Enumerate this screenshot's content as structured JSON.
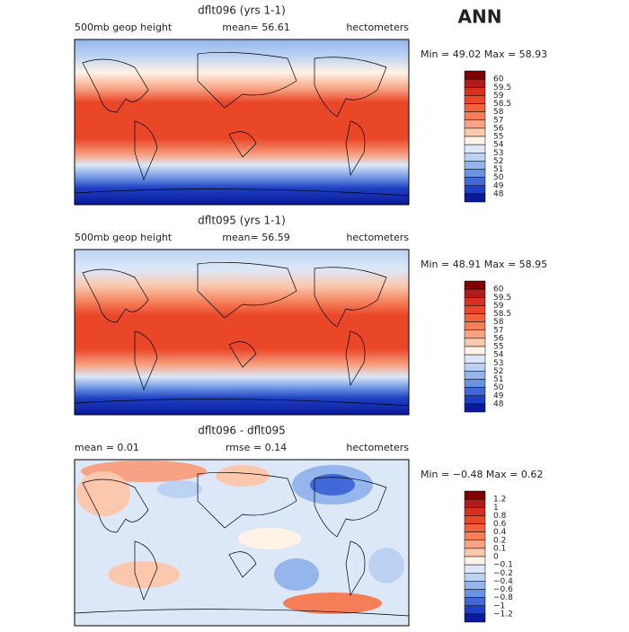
{
  "figure": {
    "label": "ANN",
    "panels": [
      {
        "title": "dflt096 (yrs 1-1)",
        "left": "500mb geop height",
        "center": "mean=  56.61",
        "right": "hectometers",
        "minmax": "Min =  49.02 Max =  58.93",
        "colorbar": {
          "labels": [
            "60",
            "59.5",
            "59",
            "58.5",
            "58",
            "57",
            "56",
            "55",
            "54",
            "53",
            "52",
            "51",
            "50",
            "49",
            "48"
          ],
          "colors": [
            "#800000",
            "#b01c1c",
            "#d8301e",
            "#ea4628",
            "#f2603c",
            "#f47e58",
            "#f7a282",
            "#fbc8ae",
            "#fff2e6",
            "#dce8f8",
            "#bcd2f2",
            "#94b6ec",
            "#6a92e2",
            "#4068d6",
            "#1e40c2",
            "#0a1a9a"
          ]
        }
      },
      {
        "title": "dflt095 (yrs 1-1)",
        "left": "500mb geop height",
        "center": "mean=  56.59",
        "right": "hectometers",
        "minmax": "Min =  48.91 Max =  58.95",
        "colorbar": {
          "labels": [
            "60",
            "59.5",
            "59",
            "58.5",
            "58",
            "57",
            "56",
            "55",
            "54",
            "53",
            "52",
            "51",
            "50",
            "49",
            "48"
          ],
          "colors": [
            "#800000",
            "#b01c1c",
            "#d8301e",
            "#ea4628",
            "#f2603c",
            "#f47e58",
            "#f7a282",
            "#fbc8ae",
            "#fff2e6",
            "#dce8f8",
            "#bcd2f2",
            "#94b6ec",
            "#6a92e2",
            "#4068d6",
            "#1e40c2",
            "#0a1a9a"
          ]
        }
      },
      {
        "title": "dflt096 - dflt095",
        "left": "mean =    0.01",
        "center": "rmse =    0.14",
        "right": "hectometers",
        "minmax": "Min = −0.48 Max =    0.62",
        "colorbar": {
          "labels": [
            "1.2",
            "1",
            "0.8",
            "0.6",
            "0.4",
            "0.2",
            "0.1",
            "0",
            "−0.1",
            "−0.2",
            "−0.4",
            "−0.6",
            "−0.8",
            "−1",
            "−1.2"
          ],
          "colors": [
            "#800000",
            "#b01c1c",
            "#d8301e",
            "#ea4628",
            "#f2603c",
            "#f47e58",
            "#f7a282",
            "#fbc8ae",
            "#fff2e6",
            "#dce8f8",
            "#bcd2f2",
            "#94b6ec",
            "#6a92e2",
            "#4068d6",
            "#1e40c2",
            "#0a1a9a"
          ]
        }
      }
    ]
  }
}
